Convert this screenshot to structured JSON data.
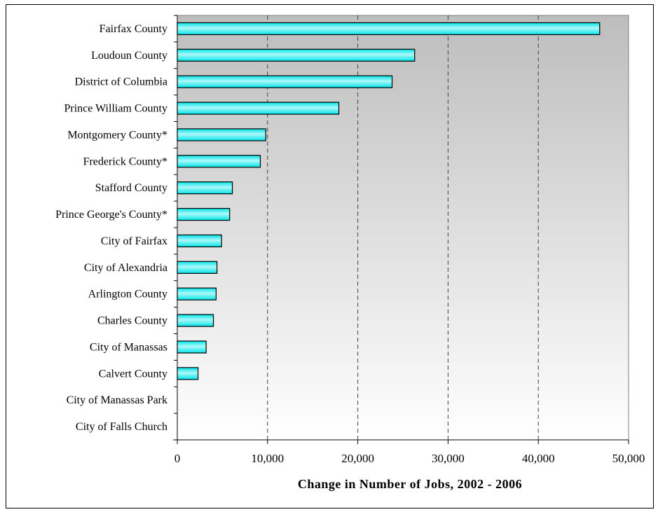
{
  "chart_data": {
    "type": "bar",
    "orientation": "horizontal",
    "title": "",
    "xlabel": "Change in Number of Jobs, 2002 - 2006",
    "ylabel": "",
    "categories": [
      "Fairfax County",
      "Loudoun County",
      "District of Columbia",
      "Prince William County",
      "Montgomery County*",
      "Frederick County*",
      "Stafford County",
      "Prince George's County*",
      "City of Fairfax",
      "City of Alexandria",
      "Arlington County",
      "Charles County",
      "City of Manassas",
      "Calvert County",
      "City of Manassas Park",
      "City of Falls Church"
    ],
    "values": [
      46800,
      26300,
      23800,
      17900,
      9800,
      9200,
      6100,
      5800,
      4900,
      4400,
      4300,
      4000,
      3200,
      2300,
      0,
      0
    ],
    "xlim": [
      0,
      50000
    ],
    "xticks": [
      0,
      10000,
      20000,
      30000,
      40000,
      50000
    ],
    "xtick_labels": [
      "0",
      "10,000",
      "20,000",
      "30,000",
      "40,000",
      "50,000"
    ],
    "grid": "vertical dashed",
    "legend": "none",
    "colors": {
      "bar_fill": "#00e5e8",
      "bar_highlight": "#aef8f9",
      "bar_stroke": "#000000",
      "plot_bg_top": "#bdbdbd",
      "plot_bg_bottom": "#ffffff",
      "gridline": "#444444"
    }
  }
}
